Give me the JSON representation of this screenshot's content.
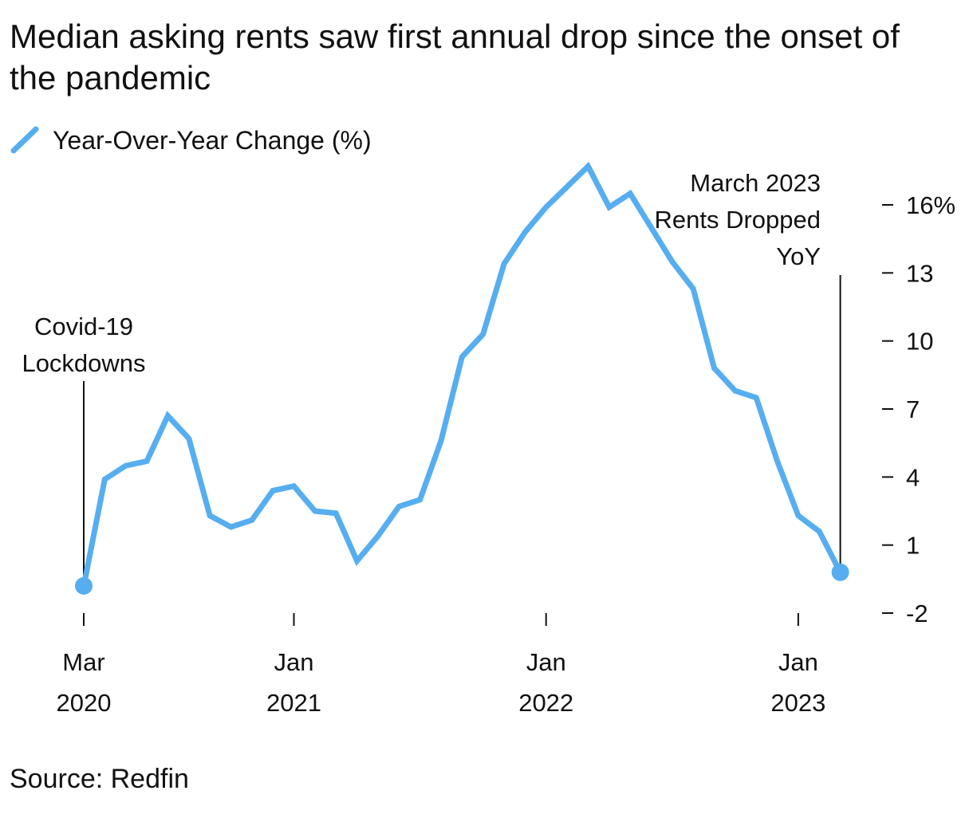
{
  "chart_data": {
    "type": "line",
    "title": "Median asking rents saw first annual drop since the onset of the pandemic",
    "legend": {
      "label": "Year-Over-Year Change (%)",
      "placement": "top-left"
    },
    "series": [
      {
        "name": "Year-Over-Year Change (%)",
        "color": "#56aef0",
        "x": [
          "2020-03",
          "2020-04",
          "2020-05",
          "2020-06",
          "2020-07",
          "2020-08",
          "2020-09",
          "2020-10",
          "2020-11",
          "2020-12",
          "2021-01",
          "2021-02",
          "2021-03",
          "2021-04",
          "2021-05",
          "2021-06",
          "2021-07",
          "2021-08",
          "2021-09",
          "2021-10",
          "2021-11",
          "2021-12",
          "2022-01",
          "2022-02",
          "2022-03",
          "2022-04",
          "2022-05",
          "2022-06",
          "2022-07",
          "2022-08",
          "2022-09",
          "2022-10",
          "2022-11",
          "2022-12",
          "2023-01",
          "2023-02",
          "2023-03"
        ],
        "values": [
          -0.8,
          3.9,
          4.5,
          4.7,
          6.7,
          5.7,
          2.3,
          1.8,
          2.1,
          3.4,
          3.6,
          2.5,
          2.4,
          0.3,
          1.4,
          2.7,
          3.0,
          5.6,
          9.3,
          10.3,
          13.4,
          14.8,
          15.9,
          16.8,
          17.7,
          15.9,
          16.5,
          15.0,
          13.5,
          12.3,
          8.8,
          7.8,
          7.5,
          4.7,
          2.3,
          1.6,
          -0.2
        ]
      }
    ],
    "y_axis": {
      "ticks": [
        16,
        13,
        10,
        7,
        4,
        1,
        -2
      ],
      "tick_labels": [
        "16%",
        "13",
        "10",
        "7",
        "4",
        "1",
        "-2"
      ],
      "ylim": [
        -2,
        16
      ],
      "position": "right"
    },
    "x_axis": {
      "ticks": [
        {
          "x": "2020-03",
          "month": "Mar",
          "year": "2020"
        },
        {
          "x": "2021-01",
          "month": "Jan",
          "year": "2021"
        },
        {
          "x": "2022-01",
          "month": "Jan",
          "year": "2022"
        },
        {
          "x": "2023-01",
          "month": "Jan",
          "year": "2023"
        }
      ]
    },
    "annotations": [
      {
        "x": "2020-03",
        "value": -0.8,
        "lines": [
          "Covid-19",
          "Lockdowns"
        ]
      },
      {
        "x": "2023-03",
        "value": -0.2,
        "lines": [
          "March 2023",
          "Rents Dropped",
          "YoY"
        ]
      }
    ],
    "grid": false
  },
  "source": "Source: Redfin"
}
